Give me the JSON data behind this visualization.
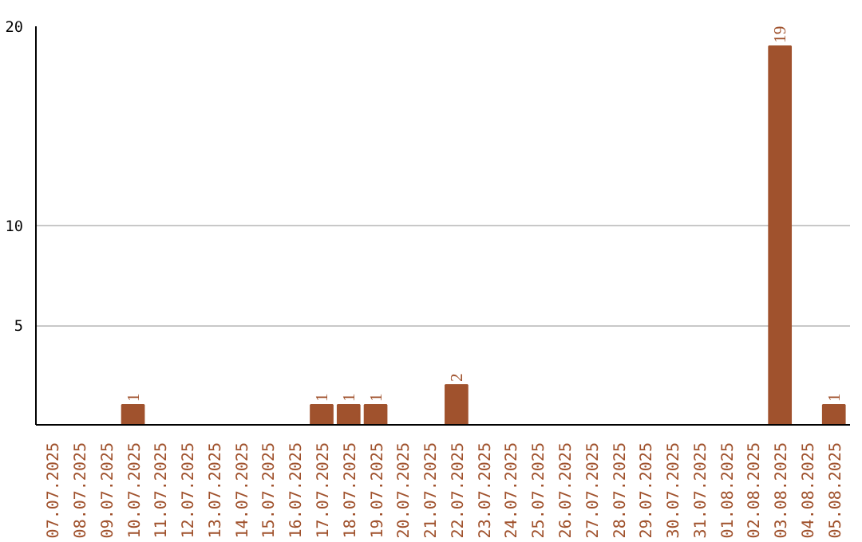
{
  "chart_data": {
    "type": "bar",
    "categories": [
      "07.07.2025",
      "08.07.2025",
      "09.07.2025",
      "10.07.2025",
      "11.07.2025",
      "12.07.2025",
      "13.07.2025",
      "14.07.2025",
      "15.07.2025",
      "16.07.2025",
      "17.07.2025",
      "18.07.2025",
      "19.07.2025",
      "20.07.2025",
      "21.07.2025",
      "22.07.2025",
      "23.07.2025",
      "24.07.2025",
      "25.07.2025",
      "26.07.2025",
      "27.07.2025",
      "28.07.2025",
      "29.07.2025",
      "30.07.2025",
      "31.07.2025",
      "01.08.2025",
      "02.08.2025",
      "03.08.2025",
      "04.08.2025",
      "05.08.2025"
    ],
    "values": [
      0,
      0,
      0,
      1,
      0,
      0,
      0,
      0,
      0,
      0,
      1,
      1,
      1,
      0,
      0,
      2,
      0,
      0,
      0,
      0,
      0,
      0,
      0,
      0,
      0,
      0,
      0,
      19,
      0,
      1
    ],
    "value_labels": [
      null,
      null,
      null,
      "1",
      null,
      null,
      null,
      null,
      null,
      null,
      "1",
      "1",
      "1",
      null,
      null,
      "2",
      null,
      null,
      null,
      null,
      null,
      null,
      null,
      null,
      null,
      null,
      null,
      "19",
      null,
      "1"
    ],
    "color": "#a0522d",
    "ylim": [
      0,
      20
    ],
    "yticks": [
      5,
      10,
      20
    ],
    "grid": "y"
  }
}
